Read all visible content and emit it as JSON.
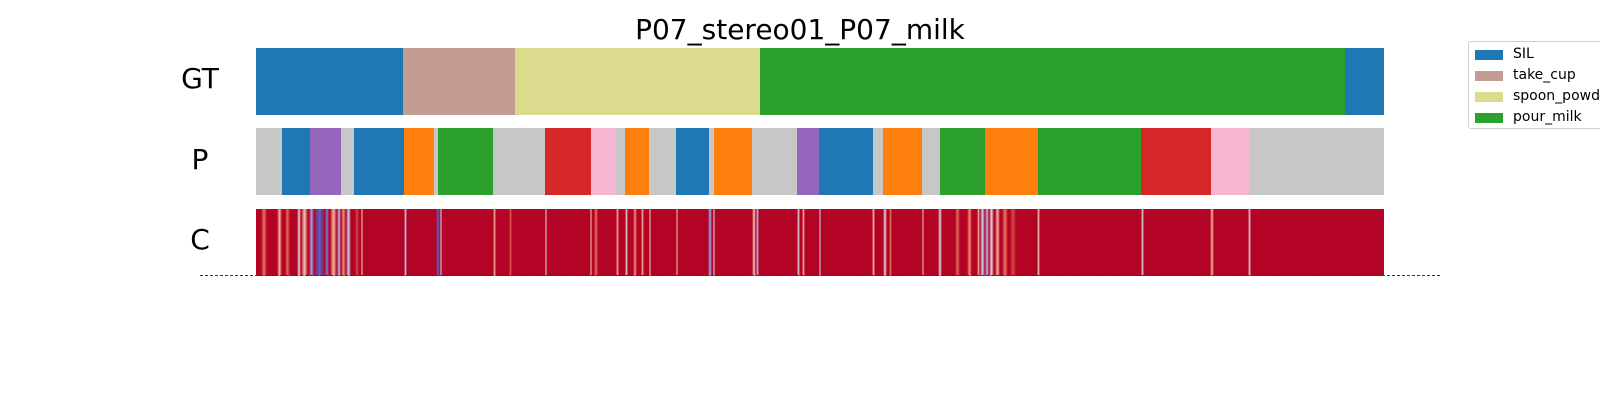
{
  "chart_data": {
    "type": "segmentation",
    "title": "P07_stereo01_P07_milk",
    "rows": [
      {
        "label": "GT",
        "segments": [
          {
            "action": "SIL",
            "start": 0,
            "end": 0.13
          },
          {
            "action": "take_cup",
            "start": 0.13,
            "end": 0.23
          },
          {
            "action": "spoon_powd",
            "start": 0.23,
            "end": 0.447
          },
          {
            "action": "pour_milk",
            "start": 0.447,
            "end": 0.965
          },
          {
            "action": "SIL",
            "start": 0.965,
            "end": 1.0
          }
        ]
      },
      {
        "label": "P",
        "segments": [
          {
            "action": "unlabeled",
            "start": 0,
            "end": 0.023
          },
          {
            "action": "SIL",
            "start": 0.023,
            "end": 0.048
          },
          {
            "action": "other_purple",
            "start": 0.048,
            "end": 0.075
          },
          {
            "action": "unlabeled",
            "start": 0.075,
            "end": 0.087
          },
          {
            "action": "SIL",
            "start": 0.087,
            "end": 0.131
          },
          {
            "action": "other_orange",
            "start": 0.131,
            "end": 0.158
          },
          {
            "action": "unlabeled",
            "start": 0.158,
            "end": 0.161
          },
          {
            "action": "pour_milk",
            "start": 0.161,
            "end": 0.21
          },
          {
            "action": "unlabeled",
            "start": 0.21,
            "end": 0.256
          },
          {
            "action": "other_red",
            "start": 0.256,
            "end": 0.297
          },
          {
            "action": "other_pink",
            "start": 0.297,
            "end": 0.319
          },
          {
            "action": "unlabeled",
            "start": 0.319,
            "end": 0.327
          },
          {
            "action": "other_orange",
            "start": 0.327,
            "end": 0.348
          },
          {
            "action": "unlabeled",
            "start": 0.348,
            "end": 0.372
          },
          {
            "action": "SIL",
            "start": 0.372,
            "end": 0.402
          },
          {
            "action": "unlabeled",
            "start": 0.402,
            "end": 0.406
          },
          {
            "action": "other_orange",
            "start": 0.406,
            "end": 0.44
          },
          {
            "action": "unlabeled",
            "start": 0.44,
            "end": 0.48
          },
          {
            "action": "other_purple",
            "start": 0.48,
            "end": 0.499
          },
          {
            "action": "SIL",
            "start": 0.499,
            "end": 0.547
          },
          {
            "action": "unlabeled",
            "start": 0.547,
            "end": 0.556
          },
          {
            "action": "other_orange",
            "start": 0.556,
            "end": 0.59
          },
          {
            "action": "unlabeled",
            "start": 0.59,
            "end": 0.606
          },
          {
            "action": "pour_milk",
            "start": 0.606,
            "end": 0.646
          },
          {
            "action": "other_orange",
            "start": 0.646,
            "end": 0.693
          },
          {
            "action": "pour_milk",
            "start": 0.693,
            "end": 0.785
          },
          {
            "action": "other_red",
            "start": 0.785,
            "end": 0.847
          },
          {
            "action": "other_pink",
            "start": 0.847,
            "end": 0.88
          },
          {
            "action": "unlabeled",
            "start": 0.88,
            "end": 1.0
          }
        ]
      },
      {
        "label": "C",
        "background": "#b40426",
        "stripes": [
          {
            "pos": 0.004,
            "width": 0.006,
            "color": "#e8765c"
          },
          {
            "pos": 0.019,
            "width": 0.004,
            "color": "#f7b89c"
          },
          {
            "pos": 0.026,
            "width": 0.004,
            "color": "#e36c55"
          },
          {
            "pos": 0.036,
            "width": 0.004,
            "color": "#dddcdc"
          },
          {
            "pos": 0.04,
            "width": 0.006,
            "color": "#f4c5ad"
          },
          {
            "pos": 0.047,
            "width": 0.004,
            "color": "#8caffe"
          },
          {
            "pos": 0.051,
            "width": 0.01,
            "color": "#4b64d5"
          },
          {
            "pos": 0.061,
            "width": 0.004,
            "color": "#6788ee"
          },
          {
            "pos": 0.066,
            "width": 0.006,
            "color": "#f7b599"
          },
          {
            "pos": 0.072,
            "width": 0.003,
            "color": "#aac7fd"
          },
          {
            "pos": 0.075,
            "width": 0.005,
            "color": "#f29072"
          },
          {
            "pos": 0.08,
            "width": 0.004,
            "color": "#c5d6f2"
          },
          {
            "pos": 0.088,
            "width": 0.003,
            "color": "#d24b40"
          },
          {
            "pos": 0.093,
            "width": 0.002,
            "color": "#f2cbb7"
          },
          {
            "pos": 0.131,
            "width": 0.003,
            "color": "#c5d6f2"
          },
          {
            "pos": 0.16,
            "width": 0.003,
            "color": "#4b64d5"
          },
          {
            "pos": 0.163,
            "width": 0.002,
            "color": "#dddcdc"
          },
          {
            "pos": 0.21,
            "width": 0.003,
            "color": "#f7b89c"
          },
          {
            "pos": 0.224,
            "width": 0.003,
            "color": "#de614d"
          },
          {
            "pos": 0.256,
            "width": 0.002,
            "color": "#dddcdc"
          },
          {
            "pos": 0.296,
            "width": 0.002,
            "color": "#f2cbb7"
          },
          {
            "pos": 0.3,
            "width": 0.003,
            "color": "#e8765c"
          },
          {
            "pos": 0.319,
            "width": 0.003,
            "color": "#f7b89c"
          },
          {
            "pos": 0.327,
            "width": 0.003,
            "color": "#dddcdc"
          },
          {
            "pos": 0.334,
            "width": 0.004,
            "color": "#f29072"
          },
          {
            "pos": 0.341,
            "width": 0.003,
            "color": "#f7b599"
          },
          {
            "pos": 0.348,
            "width": 0.002,
            "color": "#f2cbb7"
          },
          {
            "pos": 0.372,
            "width": 0.002,
            "color": "#f4c5ad"
          },
          {
            "pos": 0.401,
            "width": 0.003,
            "color": "#8caffe"
          },
          {
            "pos": 0.405,
            "width": 0.002,
            "color": "#dddcdc"
          },
          {
            "pos": 0.44,
            "width": 0.003,
            "color": "#f2cbb7"
          },
          {
            "pos": 0.443,
            "width": 0.003,
            "color": "#aac7fd"
          },
          {
            "pos": 0.48,
            "width": 0.002,
            "color": "#dddcdc"
          },
          {
            "pos": 0.484,
            "width": 0.003,
            "color": "#f7b89c"
          },
          {
            "pos": 0.499,
            "width": 0.002,
            "color": "#c5d6f2"
          },
          {
            "pos": 0.546,
            "width": 0.003,
            "color": "#f2cbb7"
          },
          {
            "pos": 0.556,
            "width": 0.003,
            "color": "#dddcdc"
          },
          {
            "pos": 0.561,
            "width": 0.003,
            "color": "#e8765c"
          },
          {
            "pos": 0.59,
            "width": 0.002,
            "color": "#f4c5ad"
          },
          {
            "pos": 0.605,
            "width": 0.003,
            "color": "#dddcdc"
          },
          {
            "pos": 0.62,
            "width": 0.004,
            "color": "#e36c55"
          },
          {
            "pos": 0.63,
            "width": 0.005,
            "color": "#f29072"
          },
          {
            "pos": 0.639,
            "width": 0.003,
            "color": "#f7b599"
          },
          {
            "pos": 0.642,
            "width": 0.004,
            "color": "#c5d6f2"
          },
          {
            "pos": 0.646,
            "width": 0.004,
            "color": "#aac7fd"
          },
          {
            "pos": 0.65,
            "width": 0.004,
            "color": "#dddcdc"
          },
          {
            "pos": 0.655,
            "width": 0.005,
            "color": "#f7b89c"
          },
          {
            "pos": 0.661,
            "width": 0.006,
            "color": "#e8765c"
          },
          {
            "pos": 0.668,
            "width": 0.006,
            "color": "#d24b40"
          },
          {
            "pos": 0.692,
            "width": 0.003,
            "color": "#f2cbb7"
          },
          {
            "pos": 0.785,
            "width": 0.002,
            "color": "#dddcdc"
          },
          {
            "pos": 0.846,
            "width": 0.003,
            "color": "#f7b89c"
          },
          {
            "pos": 0.879,
            "width": 0.003,
            "color": "#dddcdc"
          }
        ]
      }
    ],
    "palette": {
      "SIL": "#1f77b4",
      "take_cup": "#c49c94",
      "spoon_powd": "#dbdb8d",
      "pour_milk": "#2ca02c",
      "other_purple": "#9467bd",
      "other_orange": "#ff7f0e",
      "other_red": "#d62728",
      "other_pink": "#f7b6d2",
      "unlabeled": "#c7c7c7"
    },
    "legend": {
      "placement": "top-right outside",
      "entries": [
        {
          "label": "SIL",
          "color": "#1f77b4"
        },
        {
          "label": "take_cup",
          "color": "#c49c94"
        },
        {
          "label": "spoon_powd",
          "color": "#dbdb8d"
        },
        {
          "label": "pour_milk",
          "color": "#2ca02c"
        }
      ]
    }
  }
}
